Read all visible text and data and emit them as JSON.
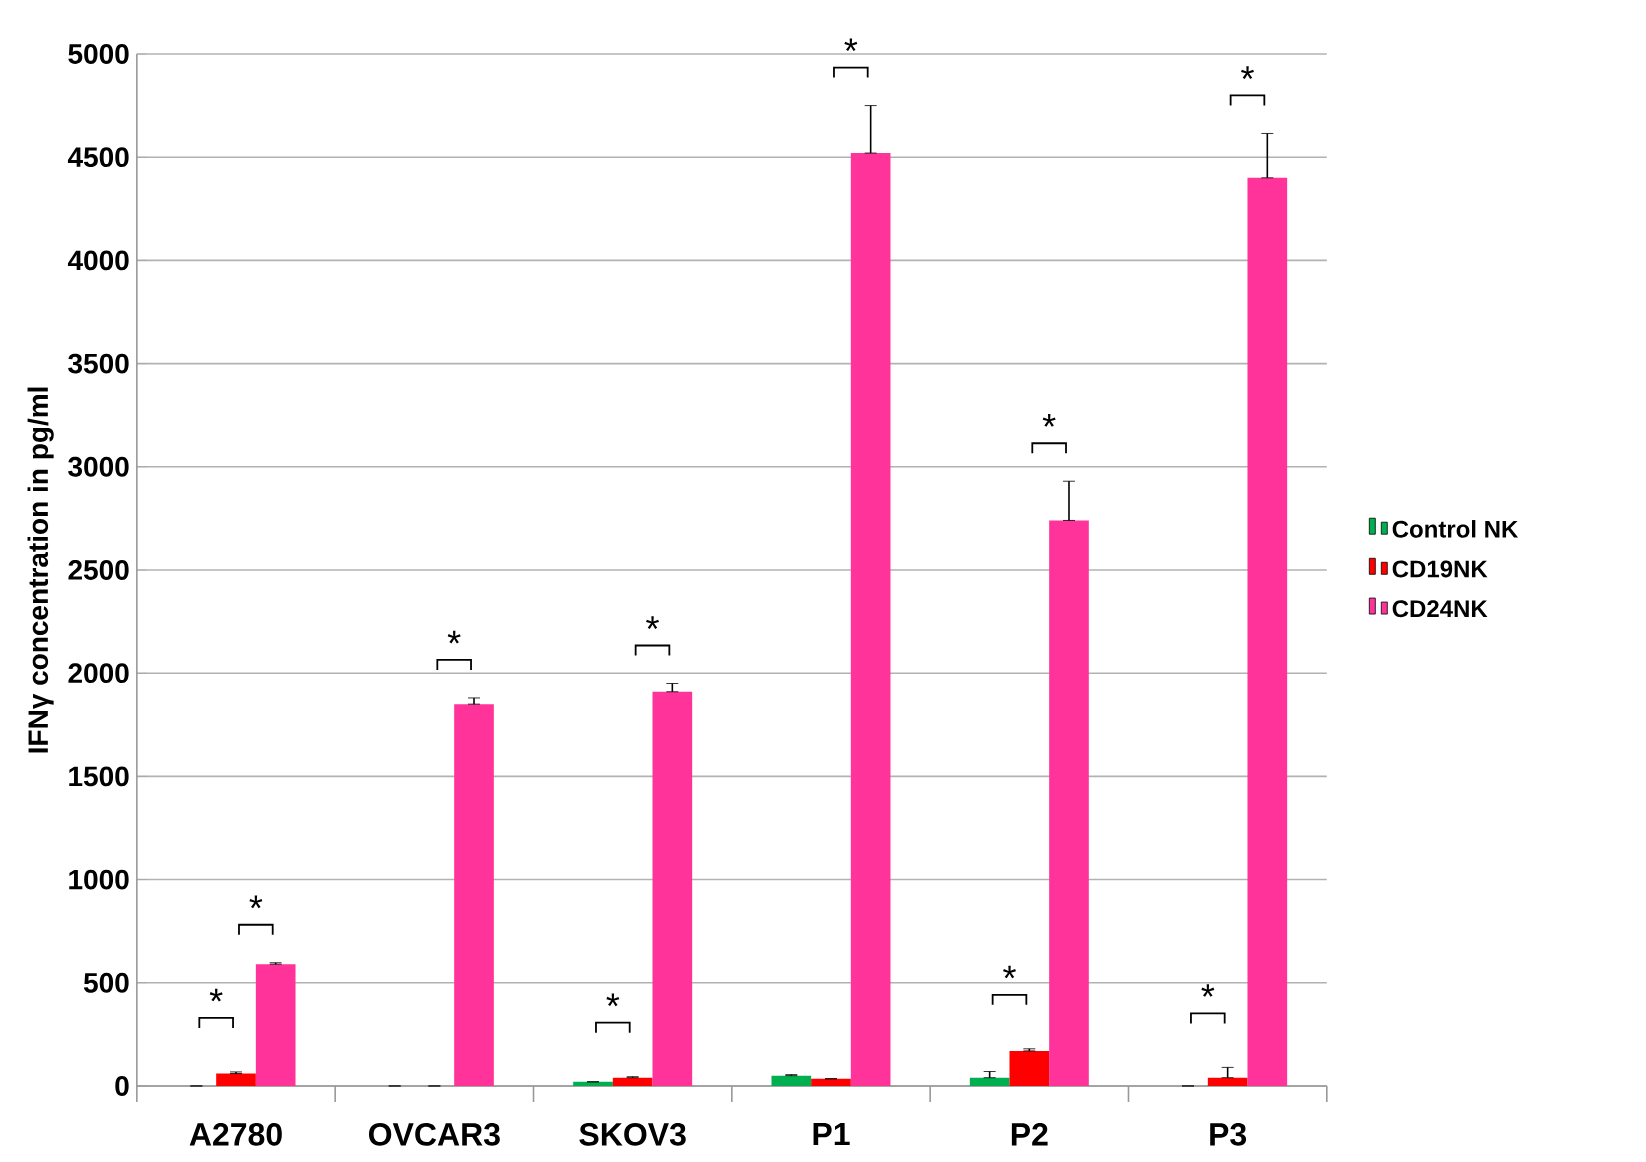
{
  "chart_data": {
    "type": "bar",
    "ylabel": "IFNγ concentration in pg/ml",
    "categories": [
      "A2780",
      "OVCAR3",
      "SKOV3",
      "P1",
      "P2",
      "P3"
    ],
    "series": [
      {
        "name": "Control NK",
        "color": "#00b050",
        "values": [
          0,
          0,
          20,
          50,
          40,
          0
        ],
        "errors": [
          null,
          null,
          null,
          [
            50,
            55
          ],
          [
            40,
            70
          ],
          null
        ]
      },
      {
        "name": "CD19NK",
        "color": "#ff0000",
        "values": [
          60,
          0,
          40,
          35,
          170,
          40
        ],
        "errors": [
          [
            60,
            68
          ],
          null,
          [
            40,
            45
          ],
          null,
          [
            170,
            180
          ],
          [
            40,
            90
          ]
        ]
      },
      {
        "name": "CD24NK",
        "color": "#ff3399",
        "values": [
          590,
          1850,
          1910,
          4520,
          2740,
          4400
        ],
        "errors": [
          [
            590,
            597
          ],
          [
            1850,
            1880
          ],
          [
            1910,
            1950
          ],
          [
            4520,
            4750
          ],
          [
            2740,
            2930
          ],
          [
            4400,
            4615
          ]
        ]
      }
    ],
    "ylim": [
      0,
      5000
    ],
    "yticks": [
      0,
      500,
      1000,
      1500,
      2000,
      2500,
      3000,
      3500,
      4000,
      4500,
      5000
    ],
    "grid": "y",
    "legend": "right",
    "annotations": [
      "*",
      "*",
      "*",
      "*",
      "*",
      "*",
      "*",
      "*",
      "*",
      "*"
    ]
  }
}
